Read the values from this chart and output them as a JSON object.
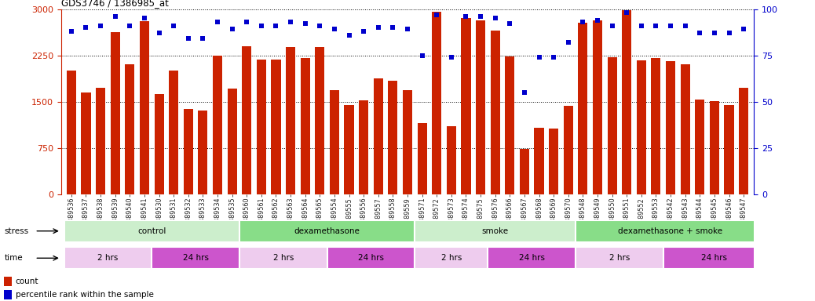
{
  "title": "GDS3746 / 1386985_at",
  "samples": [
    "GSM389536",
    "GSM389537",
    "GSM389538",
    "GSM389539",
    "GSM389540",
    "GSM389541",
    "GSM389530",
    "GSM389531",
    "GSM389532",
    "GSM389533",
    "GSM389534",
    "GSM389535",
    "GSM389560",
    "GSM389561",
    "GSM389562",
    "GSM389563",
    "GSM389564",
    "GSM389565",
    "GSM389554",
    "GSM389555",
    "GSM389556",
    "GSM389557",
    "GSM389558",
    "GSM389559",
    "GSM389571",
    "GSM389572",
    "GSM389573",
    "GSM389574",
    "GSM389575",
    "GSM389576",
    "GSM389566",
    "GSM389567",
    "GSM389568",
    "GSM389569",
    "GSM389570",
    "GSM389548",
    "GSM389549",
    "GSM389550",
    "GSM389551",
    "GSM389552",
    "GSM389553",
    "GSM389542",
    "GSM389543",
    "GSM389544",
    "GSM389545",
    "GSM389546",
    "GSM389547"
  ],
  "counts": [
    2000,
    1650,
    1720,
    2620,
    2100,
    2800,
    1620,
    2000,
    1380,
    1360,
    2250,
    1710,
    2400,
    2180,
    2180,
    2380,
    2200,
    2380,
    1680,
    1450,
    1520,
    1880,
    1840,
    1680,
    1150,
    2950,
    1100,
    2850,
    2820,
    2650,
    2230,
    730,
    1080,
    1060,
    1430,
    2780,
    2820,
    2220,
    2980,
    2170,
    2200,
    2160,
    2100,
    1530,
    1510,
    1450,
    1720
  ],
  "percentiles": [
    88,
    90,
    91,
    96,
    91,
    95,
    87,
    91,
    84,
    84,
    93,
    89,
    93,
    91,
    91,
    93,
    92,
    91,
    89,
    86,
    88,
    90,
    90,
    89,
    75,
    97,
    74,
    96,
    96,
    95,
    92,
    55,
    74,
    74,
    82,
    93,
    94,
    91,
    98,
    91,
    91,
    91,
    91,
    87,
    87,
    87,
    89
  ],
  "bar_color": "#cc2200",
  "dot_color": "#0000cc",
  "ylim_left": [
    0,
    3000
  ],
  "ylim_right": [
    0,
    100
  ],
  "yticks_left": [
    0,
    750,
    1500,
    2250,
    3000
  ],
  "yticks_right": [
    0,
    25,
    50,
    75,
    100
  ],
  "groups": [
    {
      "label": "control",
      "start": 0,
      "end": 12,
      "color": "#cceecc"
    },
    {
      "label": "dexamethasone",
      "start": 12,
      "end": 24,
      "color": "#88dd88"
    },
    {
      "label": "smoke",
      "start": 24,
      "end": 35,
      "color": "#cceecc"
    },
    {
      "label": "dexamethasone + smoke",
      "start": 35,
      "end": 48,
      "color": "#88dd88"
    }
  ],
  "time_groups": [
    {
      "label": "2 hrs",
      "start": 0,
      "end": 6,
      "color": "#eeccee"
    },
    {
      "label": "24 hrs",
      "start": 6,
      "end": 12,
      "color": "#cc55cc"
    },
    {
      "label": "2 hrs",
      "start": 12,
      "end": 18,
      "color": "#eeccee"
    },
    {
      "label": "24 hrs",
      "start": 18,
      "end": 24,
      "color": "#cc55cc"
    },
    {
      "label": "2 hrs",
      "start": 24,
      "end": 29,
      "color": "#eeccee"
    },
    {
      "label": "24 hrs",
      "start": 29,
      "end": 35,
      "color": "#cc55cc"
    },
    {
      "label": "2 hrs",
      "start": 35,
      "end": 41,
      "color": "#eeccee"
    },
    {
      "label": "24 hrs",
      "start": 41,
      "end": 48,
      "color": "#cc55cc"
    }
  ],
  "stress_label": "stress",
  "time_label": "time",
  "legend_count_label": "count",
  "legend_pct_label": "percentile rank within the sample",
  "bg_color": "#ffffff",
  "xticklabel_color": "#222222",
  "left_axis_color": "#cc2200",
  "right_axis_color": "#0000cc"
}
